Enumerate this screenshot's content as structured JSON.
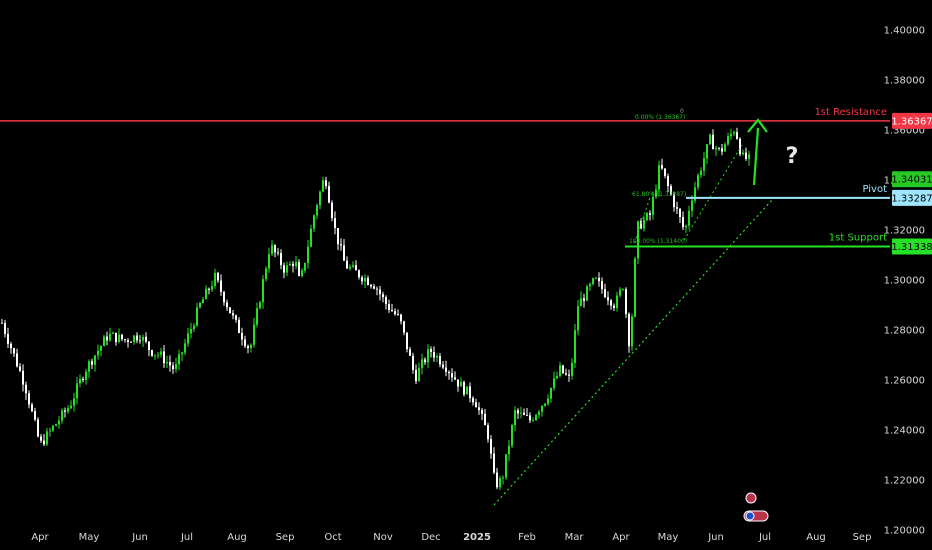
{
  "chart_data": {
    "type": "candlestick",
    "title": "",
    "xlabel": "",
    "ylabel": "",
    "ylim": [
      1.192,
      1.412
    ],
    "y_ticks": [
      "1.40000",
      "1.38000",
      "1.36000",
      "1.34000",
      "1.32000",
      "1.30000",
      "1.28000",
      "1.26000",
      "1.24000",
      "1.22000",
      "1.20000"
    ],
    "x_ticks": [
      "Apr",
      "May",
      "Jun",
      "Jul",
      "Aug",
      "Sep",
      "Oct",
      "Nov",
      "Dec",
      "2025",
      "Feb",
      "Mar",
      "Apr",
      "May",
      "Jun",
      "Jul",
      "Aug",
      "Sep"
    ],
    "grid": false,
    "series": [
      {
        "price_path": [
          [
            0,
            1.285
          ],
          [
            25,
            1.258
          ],
          [
            40,
            1.234
          ],
          [
            70,
            1.25
          ],
          [
            85,
            1.264
          ],
          [
            108,
            1.278
          ],
          [
            125,
            1.276
          ],
          [
            140,
            1.278
          ],
          [
            150,
            1.272
          ],
          [
            160,
            1.27
          ],
          [
            175,
            1.264
          ],
          [
            200,
            1.29
          ],
          [
            215,
            1.301
          ],
          [
            235,
            1.283
          ],
          [
            250,
            1.272
          ],
          [
            270,
            1.314
          ],
          [
            285,
            1.304
          ],
          [
            295,
            1.308
          ],
          [
            300,
            1.298
          ],
          [
            315,
            1.328
          ],
          [
            325,
            1.342
          ],
          [
            335,
            1.32
          ],
          [
            345,
            1.306
          ],
          [
            375,
            1.298
          ],
          [
            385,
            1.291
          ],
          [
            400,
            1.284
          ],
          [
            415,
            1.261
          ],
          [
            430,
            1.272
          ],
          [
            445,
            1.266
          ],
          [
            460,
            1.258
          ],
          [
            475,
            1.252
          ],
          [
            488,
            1.238
          ],
          [
            495,
            1.218
          ],
          [
            502,
            1.22
          ],
          [
            515,
            1.247
          ],
          [
            530,
            1.244
          ],
          [
            545,
            1.252
          ],
          [
            560,
            1.264
          ],
          [
            570,
            1.26
          ],
          [
            578,
            1.29
          ],
          [
            595,
            1.3
          ],
          [
            615,
            1.29
          ],
          [
            623,
            1.298
          ],
          [
            630,
            1.272
          ],
          [
            637,
            1.321
          ],
          [
            650,
            1.326
          ],
          [
            660,
            1.346
          ],
          [
            670,
            1.335
          ],
          [
            685,
            1.319
          ],
          [
            690,
            1.331
          ],
          [
            700,
            1.344
          ],
          [
            710,
            1.356
          ],
          [
            720,
            1.351
          ],
          [
            735,
            1.361
          ],
          [
            742,
            1.349
          ],
          [
            750,
            1.348
          ]
        ]
      }
    ],
    "levels": [
      {
        "name": "1st Resistance",
        "value": 1.36367,
        "label": "1.36367",
        "color": "#f23645"
      },
      {
        "name": "Pivot",
        "value": 1.33287,
        "label": "1.33287",
        "color": "#9fe6ff"
      },
      {
        "name": "1st Support",
        "value": 1.31338,
        "label": "1.31338",
        "color": "#25e025"
      }
    ],
    "current_price": {
      "value": 1.34031,
      "label": "1.34031",
      "color": "#26c926"
    },
    "fib_labels": [
      {
        "text": "0.00% (1.36367)",
        "value": 1.36367
      },
      {
        "text": "61.80% (1.33287)",
        "value": 1.33287
      },
      {
        "text": "100.00% (1.31400)",
        "value": 1.314
      }
    ],
    "fib_zero_label": "0",
    "question_mark": "?",
    "colors": {
      "background": "#000000",
      "candle_up": "#25e025",
      "candle_down": "#ffffff",
      "trendline": "#25e025",
      "arrow": "#25e025",
      "axis_text": "#d8d8d8"
    }
  }
}
